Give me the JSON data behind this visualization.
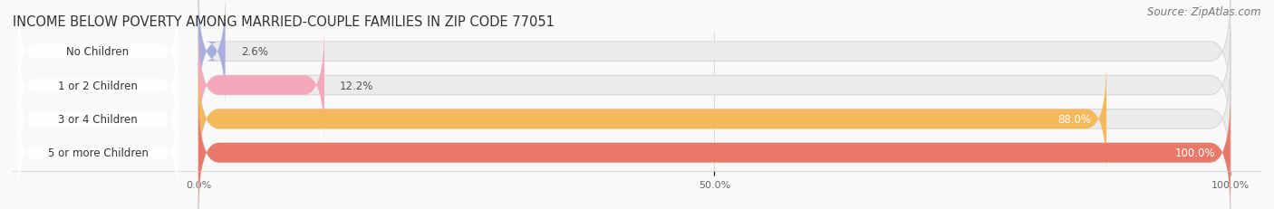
{
  "title": "INCOME BELOW POVERTY AMONG MARRIED-COUPLE FAMILIES IN ZIP CODE 77051",
  "source": "Source: ZipAtlas.com",
  "categories": [
    "No Children",
    "1 or 2 Children",
    "3 or 4 Children",
    "5 or more Children"
  ],
  "values": [
    2.6,
    12.2,
    88.0,
    100.0
  ],
  "bar_colors": [
    "#a8aedd",
    "#f5a8bc",
    "#f5b85a",
    "#e87868"
  ],
  "bg_bar_color": "#ebebeb",
  "bg_bar_edge": "#d8d8d8",
  "xtick_labels": [
    "0.0%",
    "50.0%",
    "100.0%"
  ],
  "title_fontsize": 10.5,
  "source_fontsize": 8.5,
  "label_fontsize": 8.5,
  "value_fontsize": 8.5,
  "tick_fontsize": 8,
  "background_color": "#f9f9f9",
  "pill_color": "#ffffff",
  "pill_alpha": 0.93
}
